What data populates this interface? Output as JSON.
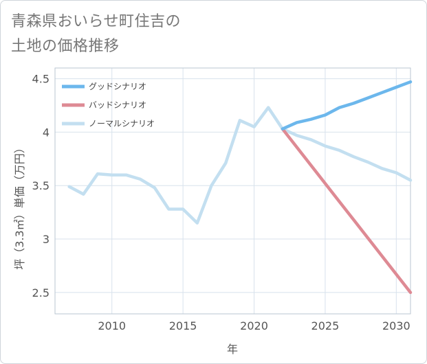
{
  "title_lines": [
    "青森県おいらせ町住吉の",
    "土地の価格推移"
  ],
  "chart_data": {
    "type": "line",
    "title": "青森県おいらせ町住吉の土地の価格推移",
    "xlabel": "年",
    "ylabel": "坪（3.3㎡）単価（万円）",
    "xlim": [
      2006,
      2031
    ],
    "ylim": [
      2.3,
      4.6
    ],
    "x_ticks": [
      2010,
      2015,
      2020,
      2025,
      2030
    ],
    "y_ticks": [
      2.5,
      3,
      3.5,
      4,
      4.5
    ],
    "x_tick_labels": [
      "2010",
      "2015",
      "2020",
      "2025",
      "2030"
    ],
    "y_tick_labels": [
      "2.5",
      "3",
      "3.5",
      "4",
      "4.5"
    ],
    "grid": true,
    "legend_position": "top-left",
    "series": [
      {
        "name": "グッドシナリオ",
        "color": "#6cb7ec",
        "x": [
          2022,
          2023,
          2024,
          2025,
          2026,
          2027,
          2028,
          2029,
          2030,
          2031
        ],
        "y": [
          4.03,
          4.09,
          4.12,
          4.16,
          4.23,
          4.27,
          4.32,
          4.37,
          4.42,
          4.47
        ]
      },
      {
        "name": "バッドシナリオ",
        "color": "#de8a94",
        "x": [
          2022,
          2023,
          2024,
          2025,
          2026,
          2027,
          2028,
          2029,
          2030,
          2031
        ],
        "y": [
          4.03,
          3.86,
          3.69,
          3.52,
          3.35,
          3.18,
          3.01,
          2.84,
          2.67,
          2.5
        ]
      },
      {
        "name": "ノーマルシナリオ",
        "color": "#c3dff0",
        "x": [
          2007,
          2008,
          2009,
          2010,
          2011,
          2012,
          2013,
          2014,
          2015,
          2016,
          2017,
          2018,
          2019,
          2020,
          2021,
          2022,
          2023,
          2024,
          2025,
          2026,
          2027,
          2028,
          2029,
          2030,
          2031
        ],
        "y": [
          3.49,
          3.42,
          3.61,
          3.6,
          3.6,
          3.56,
          3.48,
          3.28,
          3.28,
          3.15,
          3.5,
          3.71,
          4.11,
          4.05,
          4.23,
          4.03,
          3.97,
          3.93,
          3.87,
          3.83,
          3.77,
          3.72,
          3.66,
          3.62,
          3.55
        ]
      }
    ]
  }
}
